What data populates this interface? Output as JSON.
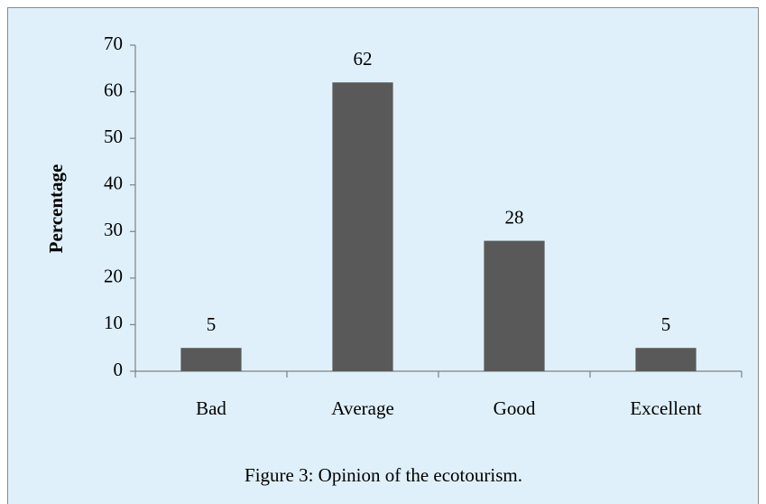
{
  "chart_data": {
    "type": "bar",
    "caption": "Figure 3: Opinion of the ecotourism.",
    "y_label": "Percentage",
    "categories": [
      "Bad",
      "Average",
      "Good",
      "Excellent"
    ],
    "values": [
      5,
      62,
      28,
      5
    ],
    "color": "#595959",
    "ylim": [
      0,
      70
    ],
    "yticks": [
      0,
      10,
      20,
      30,
      40,
      50,
      60,
      70
    ],
    "grid": false
  }
}
